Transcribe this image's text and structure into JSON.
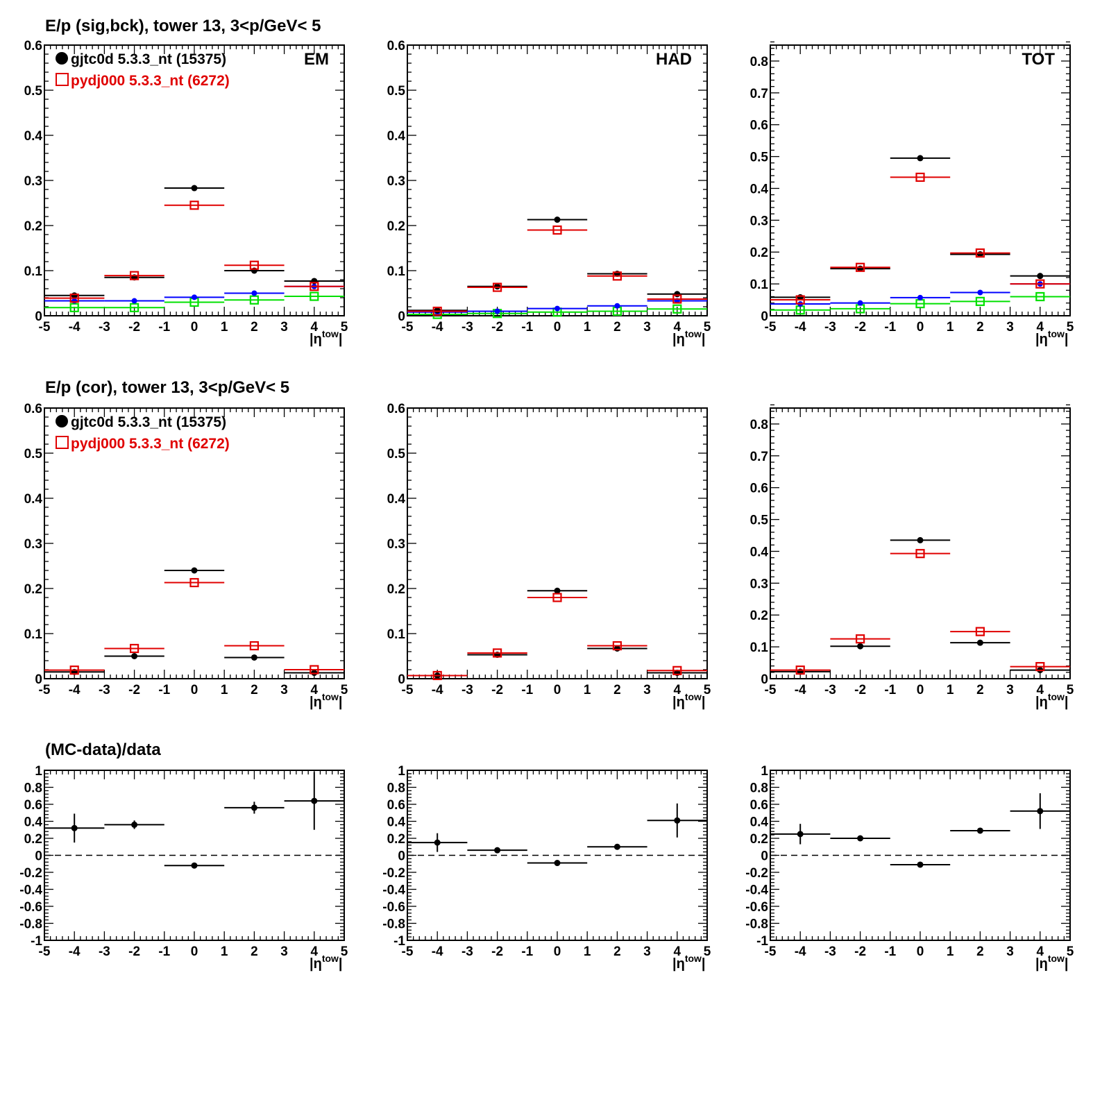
{
  "row_titles": [
    "E/p (sig,bck), tower 13,  3<p/GeV< 5",
    "E/p (cor), tower 13,  3<p/GeV< 5",
    "(MC-data)/data"
  ],
  "legend": [
    {
      "label": "gjtc0d 5.3.3_nt (15375)",
      "color": "#000000",
      "marker": "filled-circle"
    },
    {
      "label": "pydj000 5.3.3_nt (6272)",
      "color": "#e00000",
      "marker": "open-square"
    }
  ],
  "colors": {
    "data": "#000000",
    "mc": "#e00000",
    "data_background": "#0000ff",
    "mc_background": "#00e000"
  },
  "chart_data": [
    {
      "type": "scatter",
      "panel": "EM",
      "label": "EM",
      "row": 0,
      "col": 0,
      "xlabel": "|η^tow|",
      "xlim": [
        -5,
        5
      ],
      "ylim": [
        0,
        0.6
      ],
      "xticks": [
        -5,
        -4,
        -3,
        -2,
        -1,
        0,
        1,
        2,
        3,
        4,
        5
      ],
      "yticks": [
        0,
        0.1,
        0.2,
        0.3,
        0.4,
        0.5,
        0.6
      ],
      "x": [
        -4,
        -2,
        0,
        2,
        4
      ],
      "series": [
        {
          "role": "data",
          "values": [
            0.045,
            0.085,
            0.283,
            0.1,
            0.077
          ]
        },
        {
          "role": "mc",
          "values": [
            0.039,
            0.089,
            0.245,
            0.112,
            0.065
          ]
        },
        {
          "role": "data_background",
          "values": [
            0.033,
            0.033,
            0.041,
            0.05,
            0.065
          ]
        },
        {
          "role": "mc_background",
          "values": [
            0.018,
            0.018,
            0.03,
            0.035,
            0.043
          ]
        }
      ]
    },
    {
      "type": "scatter",
      "panel": "HAD",
      "label": "HAD",
      "row": 0,
      "col": 1,
      "xlabel": "|η^tow|",
      "xlim": [
        -5,
        5
      ],
      "ylim": [
        0,
        0.6
      ],
      "xticks": [
        -5,
        -4,
        -3,
        -2,
        -1,
        0,
        1,
        2,
        3,
        4,
        5
      ],
      "yticks": [
        0,
        0.1,
        0.2,
        0.3,
        0.4,
        0.5,
        0.6
      ],
      "x": [
        -4,
        -2,
        0,
        2,
        4
      ],
      "series": [
        {
          "role": "data",
          "values": [
            0.012,
            0.065,
            0.213,
            0.093,
            0.048
          ]
        },
        {
          "role": "mc",
          "values": [
            0.01,
            0.063,
            0.19,
            0.088,
            0.037
          ]
        },
        {
          "role": "data_background",
          "values": [
            0.008,
            0.01,
            0.016,
            0.022,
            0.033
          ]
        },
        {
          "role": "mc_background",
          "values": [
            0.003,
            0.005,
            0.008,
            0.01,
            0.015
          ]
        }
      ]
    },
    {
      "type": "scatter",
      "panel": "TOT",
      "label": "TOT",
      "row": 0,
      "col": 2,
      "xlabel": "|η^tow|",
      "xlim": [
        -5,
        5
      ],
      "ylim": [
        0,
        0.85
      ],
      "xticks": [
        -5,
        -4,
        -3,
        -2,
        -1,
        0,
        1,
        2,
        3,
        4,
        5
      ],
      "yticks": [
        0,
        0.1,
        0.2,
        0.3,
        0.4,
        0.5,
        0.6,
        0.7,
        0.8
      ],
      "x": [
        -4,
        -2,
        0,
        2,
        4
      ],
      "series": [
        {
          "role": "data",
          "values": [
            0.058,
            0.148,
            0.495,
            0.193,
            0.125
          ]
        },
        {
          "role": "mc",
          "values": [
            0.05,
            0.152,
            0.435,
            0.197,
            0.1
          ]
        },
        {
          "role": "data_background",
          "values": [
            0.037,
            0.04,
            0.057,
            0.073,
            0.1
          ]
        },
        {
          "role": "mc_background",
          "values": [
            0.018,
            0.022,
            0.038,
            0.045,
            0.06
          ]
        }
      ]
    },
    {
      "type": "scatter",
      "panel": "EM-cor",
      "label": "",
      "row": 1,
      "col": 0,
      "xlabel": "|η^tow|",
      "xlim": [
        -5,
        5
      ],
      "ylim": [
        0,
        0.6
      ],
      "xticks": [
        -5,
        -4,
        -3,
        -2,
        -1,
        0,
        1,
        2,
        3,
        4,
        5
      ],
      "yticks": [
        0,
        0.1,
        0.2,
        0.3,
        0.4,
        0.5,
        0.6
      ],
      "x": [
        -4,
        -2,
        0,
        2,
        4
      ],
      "series": [
        {
          "role": "data",
          "values": [
            0.015,
            0.05,
            0.24,
            0.047,
            0.013
          ]
        },
        {
          "role": "mc",
          "values": [
            0.019,
            0.067,
            0.213,
            0.073,
            0.02
          ]
        }
      ]
    },
    {
      "type": "scatter",
      "panel": "HAD-cor",
      "label": "",
      "row": 1,
      "col": 1,
      "xlabel": "|η^tow|",
      "xlim": [
        -5,
        5
      ],
      "ylim": [
        0,
        0.6
      ],
      "xticks": [
        -5,
        -4,
        -3,
        -2,
        -1,
        0,
        1,
        2,
        3,
        4,
        5
      ],
      "yticks": [
        0,
        0.1,
        0.2,
        0.3,
        0.4,
        0.5,
        0.6
      ],
      "x": [
        -4,
        -2,
        0,
        2,
        4
      ],
      "series": [
        {
          "role": "data",
          "values": [
            0.007,
            0.053,
            0.195,
            0.067,
            0.013
          ]
        },
        {
          "role": "mc",
          "values": [
            0.007,
            0.057,
            0.18,
            0.073,
            0.018
          ]
        }
      ]
    },
    {
      "type": "scatter",
      "panel": "TOT-cor",
      "label": "",
      "row": 1,
      "col": 2,
      "xlabel": "|η^tow|",
      "xlim": [
        -5,
        5
      ],
      "ylim": [
        0,
        0.85
      ],
      "xticks": [
        -5,
        -4,
        -3,
        -2,
        -1,
        0,
        1,
        2,
        3,
        4,
        5
      ],
      "yticks": [
        0,
        0.1,
        0.2,
        0.3,
        0.4,
        0.5,
        0.6,
        0.7,
        0.8
      ],
      "x": [
        -4,
        -2,
        0,
        2,
        4
      ],
      "series": [
        {
          "role": "data",
          "values": [
            0.022,
            0.102,
            0.435,
            0.113,
            0.027
          ]
        },
        {
          "role": "mc",
          "values": [
            0.027,
            0.125,
            0.393,
            0.148,
            0.038
          ]
        }
      ]
    },
    {
      "type": "scatter",
      "panel": "EM-ratio",
      "label": "",
      "row": 2,
      "col": 0,
      "xlabel": "|η^tow|",
      "xlim": [
        -5,
        5
      ],
      "ylim": [
        -1,
        1
      ],
      "xticks": [
        -5,
        -4,
        -3,
        -2,
        -1,
        0,
        1,
        2,
        3,
        4,
        5
      ],
      "yticks": [
        -1,
        -0.8,
        -0.6,
        -0.4,
        -0.2,
        0,
        0.2,
        0.4,
        0.6,
        0.8,
        1
      ],
      "reference_line": 0,
      "x": [
        -4,
        -2,
        0,
        2,
        4
      ],
      "series": [
        {
          "role": "data",
          "values": [
            0.32,
            0.36,
            -0.12,
            0.56,
            0.64
          ],
          "errors": [
            0.17,
            0.05,
            0.01,
            0.07,
            0.34
          ]
        }
      ]
    },
    {
      "type": "scatter",
      "panel": "HAD-ratio",
      "label": "",
      "row": 2,
      "col": 1,
      "xlabel": "|η^tow|",
      "xlim": [
        -5,
        5
      ],
      "ylim": [
        -1,
        1
      ],
      "xticks": [
        -5,
        -4,
        -3,
        -2,
        -1,
        0,
        1,
        2,
        3,
        4,
        5
      ],
      "yticks": [
        -1,
        -0.8,
        -0.6,
        -0.4,
        -0.2,
        0,
        0.2,
        0.4,
        0.6,
        0.8,
        1
      ],
      "reference_line": 0,
      "x": [
        -4,
        -2,
        0,
        2,
        4
      ],
      "series": [
        {
          "role": "data",
          "values": [
            0.15,
            0.06,
            -0.09,
            0.1,
            0.41
          ],
          "errors": [
            0.11,
            0.02,
            0.01,
            0.02,
            0.2
          ]
        }
      ]
    },
    {
      "type": "scatter",
      "panel": "TOT-ratio",
      "label": "",
      "row": 2,
      "col": 2,
      "xlabel": "|η^tow|",
      "xlim": [
        -5,
        5
      ],
      "ylim": [
        -1,
        1
      ],
      "xticks": [
        -5,
        -4,
        -3,
        -2,
        -1,
        0,
        1,
        2,
        3,
        4,
        5
      ],
      "yticks": [
        -1,
        -0.8,
        -0.6,
        -0.4,
        -0.2,
        0,
        0.2,
        0.4,
        0.6,
        0.8,
        1
      ],
      "reference_line": 0,
      "x": [
        -4,
        -2,
        0,
        2,
        4
      ],
      "series": [
        {
          "role": "data",
          "values": [
            0.25,
            0.2,
            -0.11,
            0.29,
            0.52
          ],
          "errors": [
            0.12,
            0.02,
            0.01,
            0.03,
            0.21
          ]
        }
      ]
    }
  ]
}
